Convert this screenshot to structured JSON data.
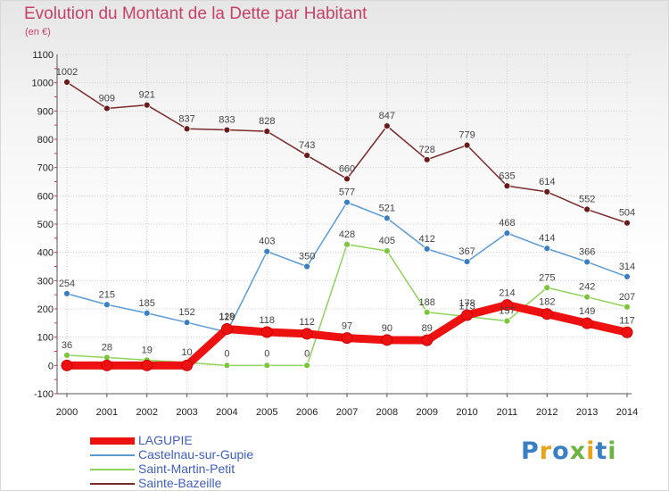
{
  "title": "Evolution du Montant de la Dette par Habitant",
  "unit_label": "(en €)",
  "logo": {
    "text": "Proxiti",
    "colors": [
      "#3a7fc4",
      "#e8a317",
      "#3a7fc4",
      "#6cb33f",
      "#e8a317",
      "#3a7fc4",
      "#6cb33f"
    ]
  },
  "chart_data": {
    "type": "line",
    "title": "Evolution du Montant de la Dette par Habitant",
    "ylabel": "(en €)",
    "xlabel": "",
    "x": [
      2000,
      2001,
      2002,
      2003,
      2004,
      2005,
      2006,
      2007,
      2008,
      2009,
      2010,
      2011,
      2012,
      2013,
      2014
    ],
    "ylim": [
      -100,
      1100
    ],
    "yticks": [
      -100,
      0,
      100,
      200,
      300,
      400,
      500,
      600,
      700,
      800,
      900,
      1000,
      1100
    ],
    "grid": true,
    "legend_position": "bottom-left",
    "series": [
      {
        "name": "LAGUPIE",
        "color": "#ee1111",
        "marker_color": "#ee1111",
        "values": [
          0,
          0,
          0,
          0,
          129,
          118,
          112,
          97,
          90,
          89,
          178,
          214,
          182,
          149,
          117
        ],
        "labels": [
          "",
          "",
          "",
          "",
          "129",
          "118",
          "112",
          "97",
          "90",
          "89",
          "178",
          "214",
          "182",
          "149",
          "117"
        ]
      },
      {
        "name": "Castelnau-sur-Gupie",
        "color": "#5b9bd5",
        "marker_color": "#3a7fc4",
        "values": [
          254,
          215,
          185,
          152,
          118,
          403,
          350,
          577,
          521,
          412,
          367,
          468,
          414,
          366,
          314
        ],
        "labels": [
          "254",
          "215",
          "185",
          "152",
          "118",
          "403",
          "350",
          "577",
          "521",
          "412",
          "367",
          "468",
          "414",
          "366",
          "314"
        ]
      },
      {
        "name": "Saint-Martin-Petit",
        "color": "#8fd45a",
        "marker_color": "#7cc63c",
        "values": [
          36,
          28,
          19,
          10,
          0,
          0,
          0,
          428,
          405,
          188,
          173,
          157,
          275,
          242,
          207
        ],
        "labels": [
          "36",
          "28",
          "19",
          "10",
          "0",
          "0",
          "0",
          "428",
          "405",
          "188",
          "173",
          "157",
          "275",
          "242",
          "207"
        ]
      },
      {
        "name": "Sainte-Bazeille",
        "color": "#7a2a2a",
        "marker_color": "#6a1a1a",
        "values": [
          1002,
          909,
          921,
          837,
          833,
          828,
          743,
          660,
          847,
          728,
          779,
          635,
          614,
          552,
          504
        ],
        "labels": [
          "1002",
          "909",
          "921",
          "837",
          "833",
          "828",
          "743",
          "660",
          "847",
          "728",
          "779",
          "635",
          "614",
          "552",
          "504"
        ]
      }
    ]
  }
}
